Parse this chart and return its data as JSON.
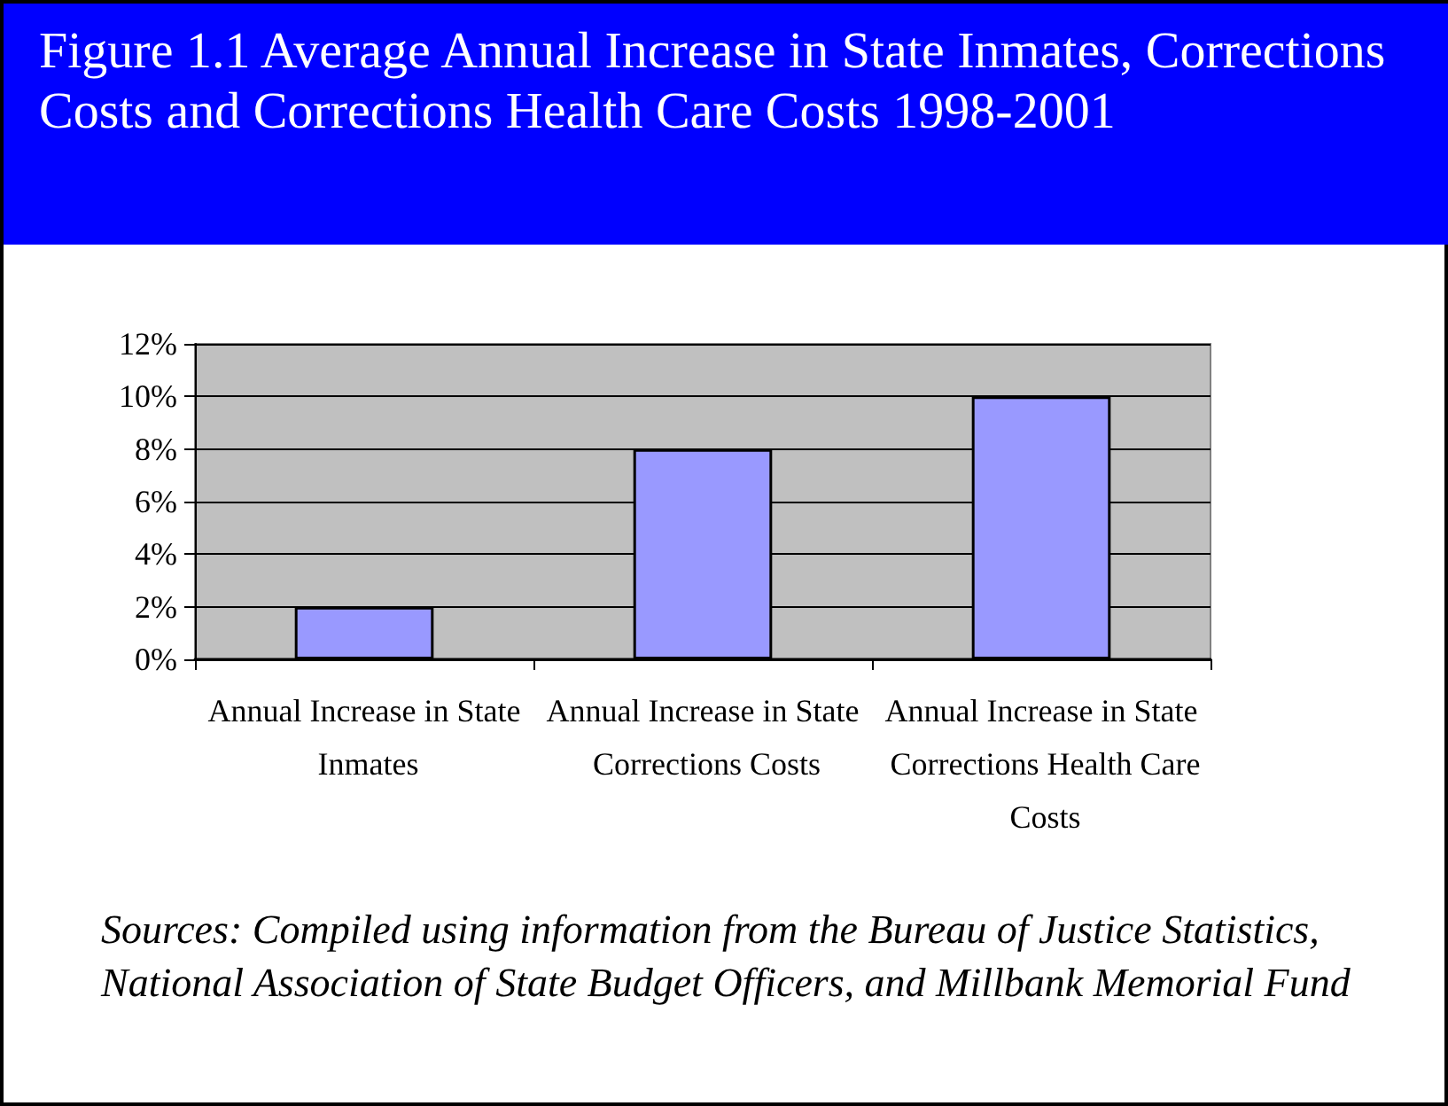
{
  "chart_data": {
    "type": "bar",
    "title": "Figure 1.1 Average Annual Increase in State Inmates, Corrections Costs and Corrections Health Care Costs 1998-2001",
    "categories": [
      "Annual Increase in State Inmates",
      "Annual Increase in State Corrections Costs",
      "Annual Increase in State Corrections Health Care Costs"
    ],
    "values": [
      2,
      8,
      10
    ],
    "color": "#9999ff",
    "ylim": [
      0,
      12
    ],
    "yticks": [
      {
        "value": 0,
        "label": "0%"
      },
      {
        "value": 2,
        "label": "2%"
      },
      {
        "value": 4,
        "label": "4%"
      },
      {
        "value": 6,
        "label": "6%"
      },
      {
        "value": 8,
        "label": "8%"
      },
      {
        "value": 10,
        "label": "10%"
      },
      {
        "value": 12,
        "label": "12%"
      }
    ],
    "grid": "y",
    "annotations": [
      "Sources: Compiled using information from the Bureau of Justice Statistics, National Association of State Budget Officers, and Millbank Memorial Fund"
    ]
  }
}
